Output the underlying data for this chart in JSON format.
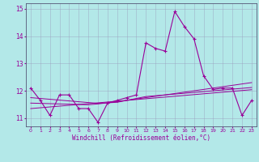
{
  "xlabel": "Windchill (Refroidissement éolien,°C)",
  "x": [
    0,
    1,
    2,
    3,
    4,
    5,
    6,
    7,
    8,
    9,
    10,
    11,
    12,
    13,
    14,
    15,
    16,
    17,
    18,
    19,
    20,
    21,
    22,
    23
  ],
  "y_main": [
    12.1,
    11.65,
    11.1,
    11.85,
    11.85,
    11.35,
    11.35,
    10.85,
    11.55,
    11.65,
    11.75,
    11.85,
    13.75,
    13.55,
    13.45,
    14.9,
    14.35,
    13.9,
    12.55,
    12.05,
    12.1,
    12.1,
    11.1,
    11.65
  ],
  "y_reg1": [
    11.75,
    11.72,
    11.69,
    11.66,
    11.63,
    11.6,
    11.57,
    11.54,
    11.56,
    11.58,
    11.65,
    11.72,
    11.79,
    11.82,
    11.85,
    11.88,
    11.91,
    11.94,
    11.97,
    12.0,
    12.03,
    12.06,
    12.09,
    12.12
  ],
  "y_reg2": [
    11.55,
    11.54,
    11.53,
    11.52,
    11.51,
    11.5,
    11.49,
    11.52,
    11.56,
    11.6,
    11.65,
    11.7,
    11.75,
    11.8,
    11.85,
    11.9,
    11.95,
    12.0,
    12.05,
    12.1,
    12.15,
    12.2,
    12.25,
    12.3
  ],
  "y_reg3": [
    11.35,
    11.38,
    11.41,
    11.44,
    11.47,
    11.5,
    11.53,
    11.56,
    11.59,
    11.62,
    11.65,
    11.68,
    11.71,
    11.74,
    11.77,
    11.8,
    11.83,
    11.86,
    11.89,
    11.92,
    11.95,
    11.98,
    12.01,
    12.04
  ],
  "line_color": "#990099",
  "bg_color": "#b3e8e8",
  "grid_color": "#9999bb",
  "ylim": [
    10.7,
    15.2
  ],
  "xlim": [
    -0.5,
    23.5
  ]
}
